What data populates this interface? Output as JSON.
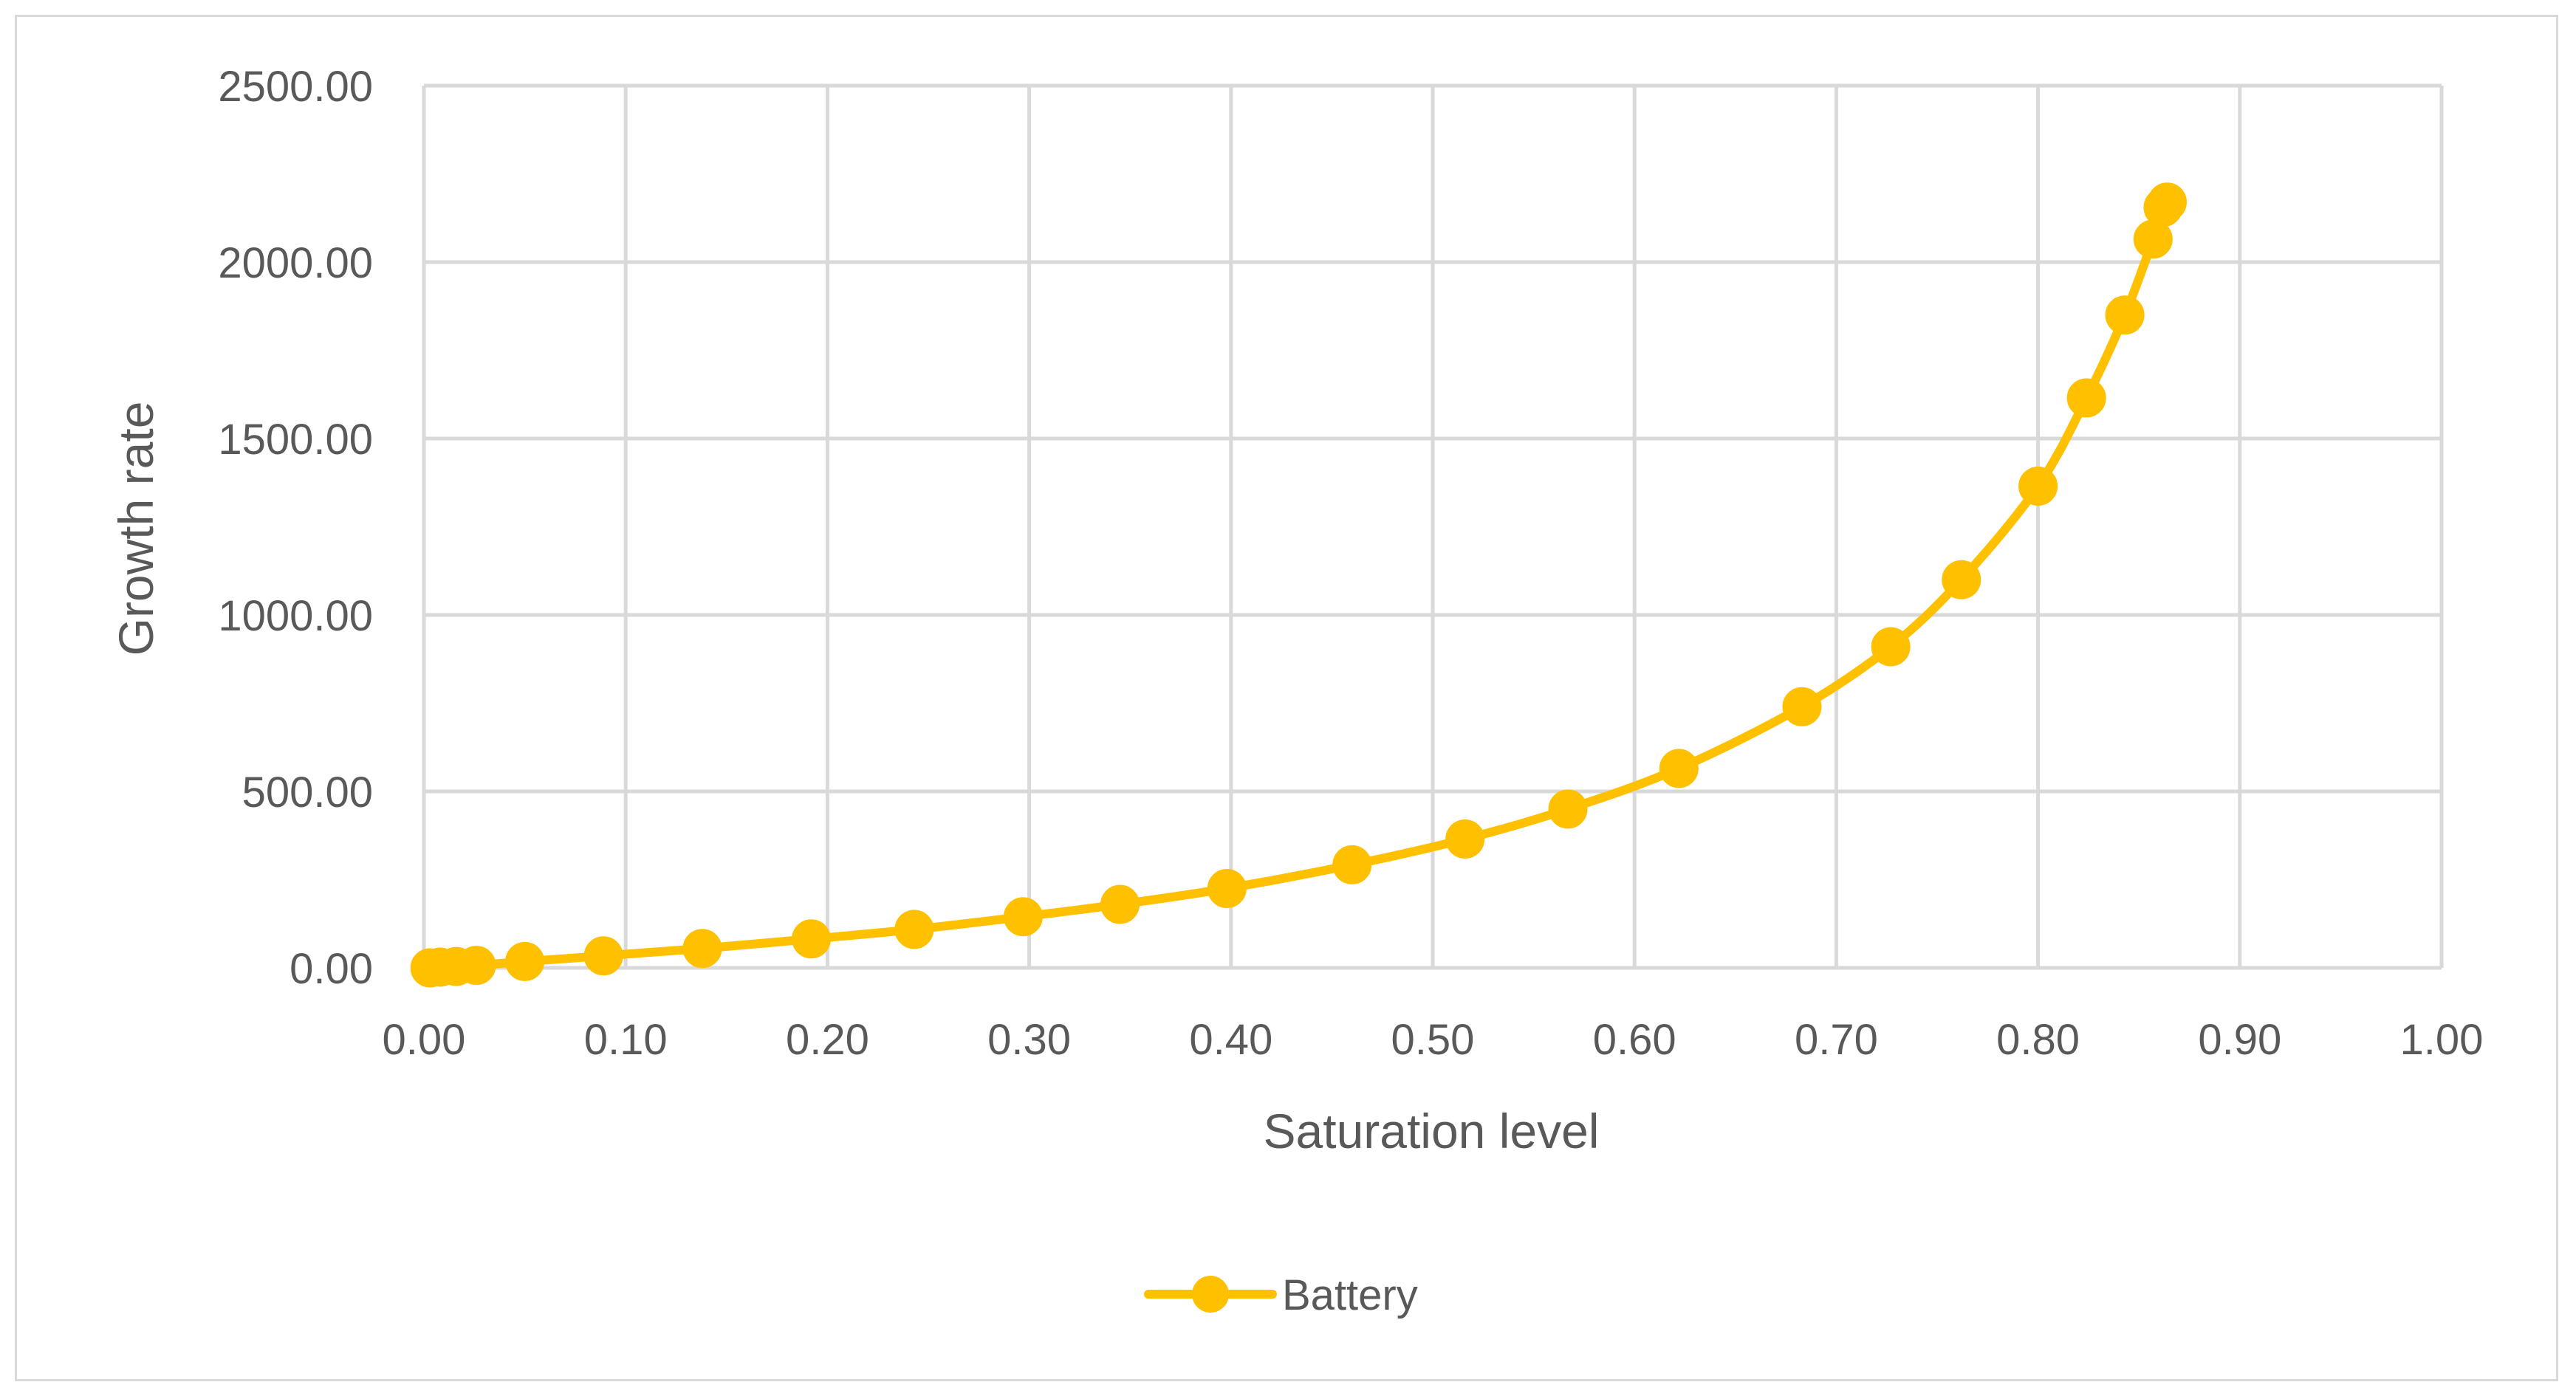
{
  "chart_data": {
    "type": "scatter",
    "title": "",
    "xlabel": "Saturation level",
    "ylabel": "Growth rate",
    "xlim": [
      0.0,
      1.0
    ],
    "ylim": [
      0.0,
      2500.0
    ],
    "x_ticks": [
      "0.00",
      "0.10",
      "0.20",
      "0.30",
      "0.40",
      "0.50",
      "0.60",
      "0.70",
      "0.80",
      "0.90",
      "1.00"
    ],
    "y_ticks": [
      "0.00",
      "500.00",
      "1000.00",
      "1500.00",
      "2000.00",
      "2500.00"
    ],
    "grid": true,
    "legend_position": "bottom",
    "line_style": "smoothed lines with markers",
    "series": [
      {
        "name": "Battery",
        "color": "#FFC000",
        "points": [
          [
            0.003,
            0
          ],
          [
            0.008,
            2
          ],
          [
            0.016,
            4
          ],
          [
            0.026,
            7
          ],
          [
            0.05,
            18
          ],
          [
            0.089,
            34
          ],
          [
            0.138,
            55
          ],
          [
            0.192,
            82
          ],
          [
            0.243,
            109
          ],
          [
            0.297,
            145
          ],
          [
            0.345,
            180
          ],
          [
            0.398,
            225
          ],
          [
            0.46,
            292
          ],
          [
            0.516,
            365
          ],
          [
            0.567,
            450
          ],
          [
            0.622,
            565
          ],
          [
            0.683,
            740
          ],
          [
            0.727,
            910
          ],
          [
            0.762,
            1100
          ],
          [
            0.8,
            1365
          ],
          [
            0.824,
            1615
          ],
          [
            0.843,
            1850
          ],
          [
            0.857,
            2065
          ],
          [
            0.862,
            2155
          ],
          [
            0.864,
            2170
          ]
        ]
      }
    ]
  }
}
